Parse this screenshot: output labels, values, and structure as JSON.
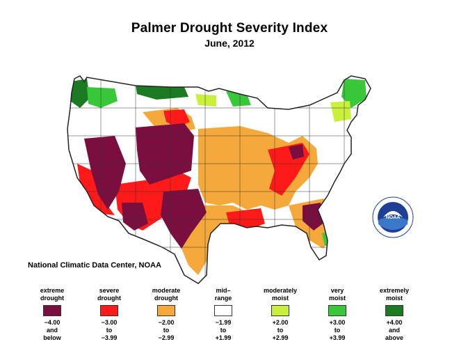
{
  "title": "Palmer Drought Severity Index",
  "subtitle": "June, 2012",
  "credit": "National Climatic Data Center, NOAA",
  "logo_text": "NOAA",
  "logo_colors": {
    "outer": "#ffffff",
    "ring": "#1f3f95",
    "wave": "#3b78c9",
    "bird": "#ffffff"
  },
  "legend": [
    {
      "label": "extreme\ndrought",
      "range": "−4.00\nand\nbelow",
      "color": "#7a0f3f"
    },
    {
      "label": "severe\ndrought",
      "range": "−3.00\nto\n−3.99",
      "color": "#ff1a1a"
    },
    {
      "label": "moderate\ndrought",
      "range": "−2.00\nto\n−2.99",
      "color": "#f6a93b"
    },
    {
      "label": "mid–\nrange",
      "range": "−1.99\nto\n+1.99",
      "color": "#ffffff"
    },
    {
      "label": "moderately\nmoist",
      "range": "+2.00\nto\n+2.99",
      "color": "#c9f03a"
    },
    {
      "label": "very\nmoist",
      "range": "+3.00\nto\n+3.99",
      "color": "#39c83a"
    },
    {
      "label": "extremely\nmoist",
      "range": "+4.00\nand\nabove",
      "color": "#1b7a22"
    }
  ],
  "map_colors": {
    "extreme": "#7a0f3f",
    "severe": "#ff1a1a",
    "moderate": "#f6a93b",
    "mid": "#ffffff",
    "mod_moist": "#c9f03a",
    "very_moist": "#39c83a",
    "ext_moist": "#1b7a22",
    "border": "#222222"
  }
}
